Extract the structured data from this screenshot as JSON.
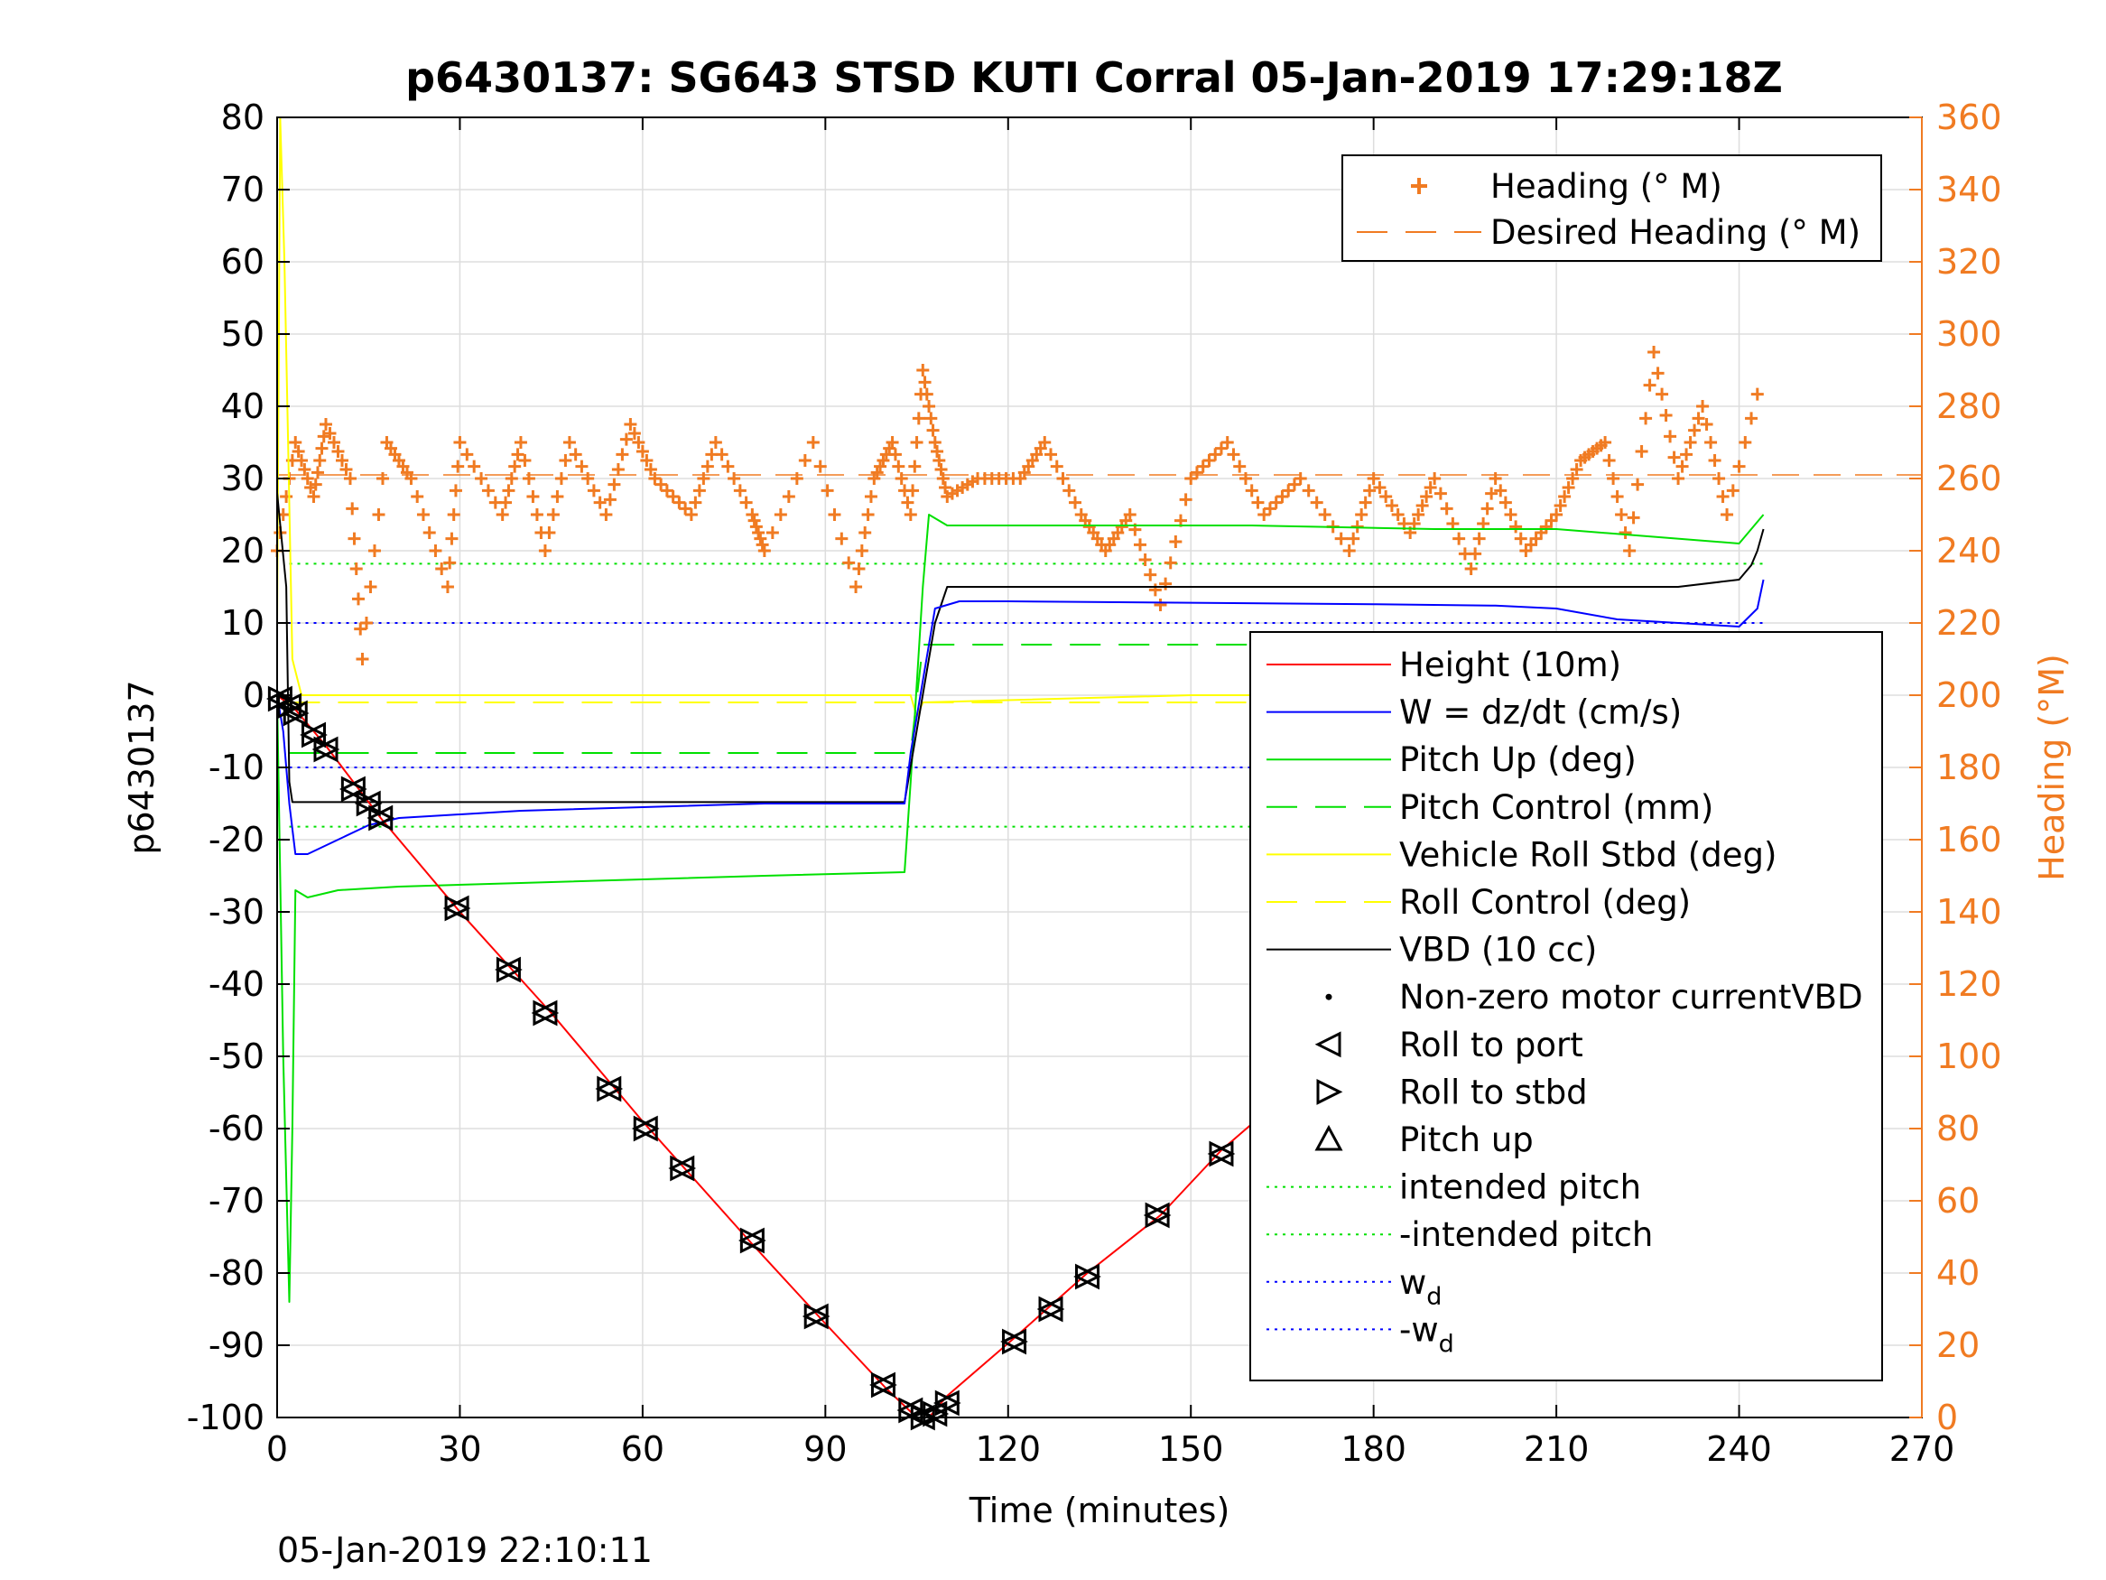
{
  "chart_data": {
    "type": "line",
    "title": "p6430137: SG643 STSD KUTI Corral 05-Jan-2019 17:29:18Z",
    "xlabel": "Time (minutes)",
    "ylabel_left": "p6430137",
    "ylabel_right": "Heading (°M)",
    "footer": "05-Jan-2019 22:10:11",
    "xlim": [
      0,
      270
    ],
    "ylim_left": [
      -100,
      80
    ],
    "ylim_right": [
      0,
      360
    ],
    "x_ticks": [
      0,
      30,
      60,
      90,
      120,
      150,
      180,
      210,
      240,
      270
    ],
    "y_ticks_left": [
      80,
      70,
      60,
      50,
      40,
      30,
      20,
      10,
      0,
      -10,
      -20,
      -30,
      -40,
      -50,
      -60,
      -70,
      -80,
      -90,
      -100
    ],
    "y_ticks_right": [
      360,
      340,
      320,
      300,
      280,
      260,
      240,
      220,
      200,
      180,
      160,
      140,
      120,
      100,
      80,
      60,
      40,
      20,
      0
    ],
    "grid": true,
    "colors": {
      "heading": "#f07b22",
      "height": "#ff0000",
      "w": "#0000ff",
      "pitch": "#00e000",
      "roll": "#ffff00",
      "vbd": "#000000"
    },
    "legend_top": [
      {
        "label": "Heading (° M)",
        "style": "plus",
        "color": "#f07b22"
      },
      {
        "label": "Desired Heading (° M)",
        "style": "dash",
        "color": "#f07b22"
      }
    ],
    "legend_main": [
      {
        "label": "Height (10m)",
        "style": "solid",
        "color": "#ff0000"
      },
      {
        "label": "W = dz/dt (cm/s)",
        "style": "solid",
        "color": "#0000ff"
      },
      {
        "label": "Pitch Up (deg)",
        "style": "solid",
        "color": "#00e000"
      },
      {
        "label": "Pitch Control (mm)",
        "style": "dash",
        "color": "#00e000"
      },
      {
        "label": "Vehicle Roll Stbd (deg)",
        "style": "solid",
        "color": "#ffff00"
      },
      {
        "label": "Roll Control (deg)",
        "style": "dash",
        "color": "#ffff00"
      },
      {
        "label": "VBD (10 cc)",
        "style": "solid",
        "color": "#000000"
      },
      {
        "label": "Non-zero motor currentVBD",
        "style": "dot",
        "color": "#000000"
      },
      {
        "label": "Roll to port",
        "style": "tri-left",
        "color": "#000000"
      },
      {
        "label": "Roll to stbd",
        "style": "tri-right",
        "color": "#000000"
      },
      {
        "label": "Pitch up",
        "style": "tri-up",
        "color": "#000000"
      },
      {
        "label": "intended pitch",
        "style": "dotted",
        "color": "#00e000"
      },
      {
        "label": "-intended pitch",
        "style": "dotted",
        "color": "#00e000"
      },
      {
        "label": "w",
        "sub": "d",
        "style": "dotted",
        "color": "#0000ff"
      },
      {
        "label": "-w",
        "sub": "d",
        "style": "dotted",
        "color": "#0000ff"
      }
    ],
    "series": [
      {
        "name": "Height (10m)",
        "x": [
          0,
          3,
          8,
          17,
          30,
          45,
          60,
          78,
          90,
          100,
          105,
          107,
          110,
          121,
          133,
          145,
          155,
          166,
          177,
          187,
          199,
          211,
          222,
          232,
          244
        ],
        "y": [
          0,
          -2,
          -7,
          -17,
          -30,
          -44,
          -59,
          -76,
          -87,
          -96,
          -100,
          -100,
          -97,
          -89,
          -80,
          -72,
          -63,
          -55,
          -46,
          -39,
          -31,
          -22,
          -13,
          -7,
          0
        ]
      },
      {
        "name": "W = dz/dt (cm/s)",
        "x": [
          0,
          1,
          2,
          3,
          5,
          10,
          15,
          20,
          40,
          60,
          80,
          103,
          104,
          106,
          108,
          112,
          120,
          150,
          180,
          200,
          210,
          220,
          230,
          240,
          243,
          244
        ],
        "y": [
          0,
          -5,
          -15,
          -22,
          -22,
          -20,
          -18,
          -17,
          -16,
          -15.5,
          -15,
          -15,
          -8,
          2,
          12,
          13,
          13,
          12.8,
          12.6,
          12.4,
          12,
          10.5,
          10,
          9.5,
          12,
          16
        ]
      },
      {
        "name": "Pitch Up (deg)",
        "x": [
          0,
          1,
          2,
          2.5,
          3,
          5,
          10,
          20,
          40,
          60,
          80,
          103,
          104,
          106,
          107,
          110,
          130,
          160,
          190,
          210,
          225,
          240,
          244
        ],
        "y": [
          0,
          -50,
          -84,
          -60,
          -27,
          -28,
          -27,
          -26.5,
          -26,
          -25.5,
          -25,
          -24.5,
          -12,
          15,
          25,
          23.5,
          23.5,
          23.5,
          23,
          23,
          22,
          21,
          25
        ]
      },
      {
        "name": "Pitch Control (mm)",
        "x": [
          2,
          104,
          106,
          244
        ],
        "y": [
          -8,
          -8,
          7,
          7
        ]
      },
      {
        "name": "Vehicle Roll Stbd (deg)",
        "x": [
          0,
          0.5,
          1.2,
          1.8,
          2.5,
          4,
          6,
          10,
          20,
          40,
          60,
          80,
          104,
          105,
          106,
          150,
          200,
          244
        ],
        "y": [
          10,
          80,
          60,
          35,
          5,
          0,
          0,
          0,
          0,
          0,
          0,
          0,
          0,
          -3,
          -1,
          0,
          0,
          0
        ]
      },
      {
        "name": "Roll Control (deg)",
        "x": [
          2,
          244
        ],
        "y": [
          -1,
          -1
        ]
      },
      {
        "name": "VBD (10 cc)",
        "x": [
          0,
          1.5,
          2,
          2.5,
          103,
          108,
          110,
          230,
          240,
          242,
          243,
          244
        ],
        "y": [
          28,
          15,
          -12,
          -14.8,
          -14.8,
          10,
          15,
          15,
          16,
          18,
          20,
          23
        ]
      },
      {
        "name": "Heading (° M)",
        "x": [
          0,
          3,
          6,
          8,
          12,
          14,
          18,
          22,
          28,
          30,
          37,
          40,
          44,
          48,
          54,
          58,
          62,
          68,
          72,
          78,
          80,
          88,
          95,
          98,
          101,
          104,
          106,
          108,
          110,
          115,
          122,
          126,
          132,
          136,
          140,
          145,
          150,
          156,
          162,
          168,
          176,
          180,
          186,
          190,
          196,
          200,
          205,
          210,
          214,
          218,
          222,
          226,
          230,
          234,
          238,
          244
        ],
        "y": [
          240,
          270,
          255,
          275,
          260,
          210,
          270,
          260,
          230,
          270,
          250,
          270,
          240,
          270,
          250,
          275,
          260,
          250,
          270,
          250,
          240,
          270,
          230,
          260,
          270,
          250,
          290,
          270,
          255,
          260,
          260,
          270,
          250,
          240,
          250,
          225,
          260,
          270,
          250,
          260,
          240,
          260,
          245,
          260,
          235,
          260,
          240,
          250,
          265,
          270,
          240,
          295,
          260,
          280,
          250,
          290
        ]
      },
      {
        "name": "Desired Heading (° M)",
        "x": [
          0,
          270
        ],
        "y": [
          261,
          261
        ]
      }
    ],
    "reference_lines": [
      {
        "name": "intended pitch",
        "y": 18.2
      },
      {
        "name": "-intended pitch",
        "y": -18.2
      },
      {
        "name": "w_d",
        "y": 10
      },
      {
        "name": "-w_d",
        "y": -10
      }
    ],
    "markers": [
      {
        "x": 0.5,
        "y": -0.5
      },
      {
        "x": 2,
        "y": -1.5
      },
      {
        "x": 3,
        "y": -2.5
      },
      {
        "x": 6,
        "y": -5.5
      },
      {
        "x": 8,
        "y": -7.5
      },
      {
        "x": 12.5,
        "y": -13
      },
      {
        "x": 15,
        "y": -15
      },
      {
        "x": 17,
        "y": -17
      },
      {
        "x": 29.5,
        "y": -29.5
      },
      {
        "x": 38,
        "y": -38
      },
      {
        "x": 44,
        "y": -44
      },
      {
        "x": 54.5,
        "y": -54.5
      },
      {
        "x": 60.5,
        "y": -60
      },
      {
        "x": 66.5,
        "y": -65.5
      },
      {
        "x": 78,
        "y": -75.5
      },
      {
        "x": 88.5,
        "y": -86
      },
      {
        "x": 99.5,
        "y": -95.5
      },
      {
        "x": 104,
        "y": -99
      },
      {
        "x": 106,
        "y": -100
      },
      {
        "x": 108,
        "y": -99.5
      },
      {
        "x": 110,
        "y": -98
      },
      {
        "x": 121,
        "y": -89.5
      },
      {
        "x": 127,
        "y": -85
      },
      {
        "x": 133,
        "y": -80.5
      },
      {
        "x": 144.5,
        "y": -72
      },
      {
        "x": 155,
        "y": -63.5
      },
      {
        "x": 166,
        "y": -55
      },
      {
        "x": 176.5,
        "y": -47
      },
      {
        "x": 187.5,
        "y": -39
      },
      {
        "x": 193,
        "y": -35
      },
      {
        "x": 199,
        "y": -30.5
      },
      {
        "x": 210.5,
        "y": -21.5
      },
      {
        "x": 215,
        "y": -18
      },
      {
        "x": 218,
        "y": -15.5
      },
      {
        "x": 222.5,
        "y": -13
      },
      {
        "x": 225,
        "y": -11.5
      },
      {
        "x": 227.5,
        "y": -10
      },
      {
        "x": 230,
        "y": -8
      },
      {
        "x": 232,
        "y": -6.5
      },
      {
        "x": 234.5,
        "y": -5.5
      },
      {
        "x": 237,
        "y": -4
      },
      {
        "x": 239,
        "y": -3
      },
      {
        "x": 241.5,
        "y": -1.5
      },
      {
        "x": 244,
        "y": -0.5
      }
    ]
  }
}
